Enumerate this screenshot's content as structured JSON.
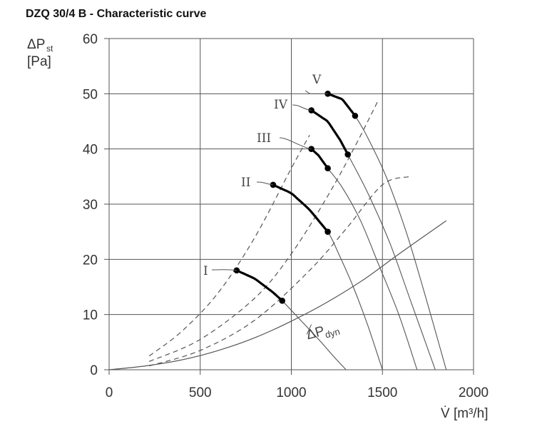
{
  "title": "DZQ 30/4 B - Characteristic curve",
  "chart_data": {
    "type": "line",
    "title": "DZQ 30/4 B - Characteristic curve",
    "xlabel": "V̇ [m³/h]",
    "ylabel_symbol": "ΔP",
    "ylabel_sub": "st",
    "ylabel_unit": "[Pa]",
    "xlim": [
      0,
      2000
    ],
    "ylim": [
      0,
      60
    ],
    "x_ticks": [
      0,
      500,
      1000,
      1500,
      2000
    ],
    "y_ticks": [
      0,
      10,
      20,
      30,
      40,
      50,
      60
    ],
    "grid": true,
    "fan_curves": [
      {
        "name": "I",
        "x": [
          700,
          800,
          900,
          950,
          1050,
          1150,
          1230,
          1300
        ],
        "y": [
          18,
          16.5,
          14,
          12.5,
          9,
          5.5,
          2.5,
          0
        ]
      },
      {
        "name": "II",
        "x": [
          900,
          1000,
          1100,
          1200,
          1260,
          1340,
          1420,
          1500
        ],
        "y": [
          33.5,
          32,
          29,
          25,
          21,
          15,
          8,
          0
        ]
      },
      {
        "name": "III",
        "x": [
          1110,
          1150,
          1200,
          1280,
          1380,
          1480,
          1590,
          1690
        ],
        "y": [
          40,
          38.8,
          36.5,
          33,
          27,
          19,
          10,
          0
        ]
      },
      {
        "name": "IV",
        "x": [
          1110,
          1200,
          1270,
          1310,
          1420,
          1540,
          1660,
          1790
        ],
        "y": [
          47,
          45,
          41.5,
          39,
          32,
          23,
          12,
          0
        ]
      },
      {
        "name": "V",
        "x": [
          1200,
          1280,
          1350,
          1420,
          1520,
          1630,
          1730,
          1850
        ],
        "y": [
          50,
          49,
          46,
          42,
          35,
          25,
          14,
          0
        ]
      }
    ],
    "operating_segments": [
      {
        "name": "I",
        "x": [
          700,
          950
        ],
        "y": [
          18,
          12.5
        ]
      },
      {
        "name": "II",
        "x": [
          900,
          1200
        ],
        "y": [
          33.5,
          25
        ]
      },
      {
        "name": "III",
        "x": [
          1110,
          1200
        ],
        "y": [
          40,
          36.5
        ]
      },
      {
        "name": "IV",
        "x": [
          1110,
          1310
        ],
        "y": [
          47,
          39
        ]
      },
      {
        "name": "V",
        "x": [
          1200,
          1350
        ],
        "y": [
          50,
          46
        ]
      }
    ],
    "system_curves_dashed": [
      {
        "x": [
          220,
          400,
          600,
          800,
          1000,
          1100
        ],
        "y": [
          2.5,
          7,
          14,
          24,
          36.5,
          42.5
        ]
      },
      {
        "x": [
          220,
          500,
          800,
          1000,
          1200,
          1350,
          1480
        ],
        "y": [
          1.5,
          5.5,
          13,
          21,
          31.5,
          40.5,
          49
        ]
      },
      {
        "x": [
          220,
          500,
          800,
          1100,
          1300,
          1500,
          1650
        ],
        "y": [
          0.7,
          3.5,
          9,
          18,
          25.5,
          33.5,
          35
        ]
      }
    ],
    "dynamic_pressure_curve": {
      "name": "ΔP",
      "name_sub": "dyn",
      "x": [
        0,
        200,
        400,
        600,
        800,
        1000,
        1200,
        1400,
        1600,
        1850
      ],
      "y": [
        0,
        0.7,
        1.8,
        3.5,
        5.8,
        8.8,
        12.3,
        16.4,
        21.2,
        27
      ]
    }
  }
}
